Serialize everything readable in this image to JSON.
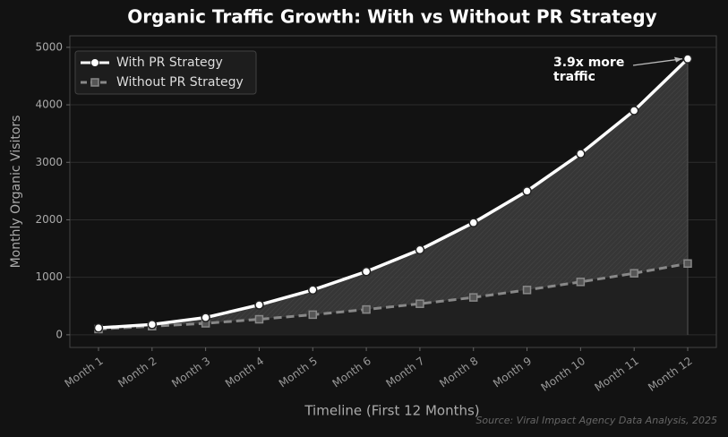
{
  "chart_data": {
    "type": "line",
    "title": "Organic Traffic Growth: With vs Without PR Strategy",
    "x_label": "Timeline (First 12 Months)",
    "y_label": "Monthly Organic Visitors",
    "categories": [
      "Month 1",
      "Month 2",
      "Month 3",
      "Month 4",
      "Month 5",
      "Month 6",
      "Month 7",
      "Month 8",
      "Month 9",
      "Month 10",
      "Month 11",
      "Month 12"
    ],
    "series": [
      {
        "name": "With PR Strategy",
        "color": "#ffffff",
        "marker": "circle",
        "dash": false,
        "values": [
          120,
          180,
          300,
          520,
          780,
          1100,
          1480,
          1950,
          2500,
          3150,
          3900,
          4800
        ]
      },
      {
        "name": "Without PR Strategy",
        "color": "#888888",
        "marker": "square",
        "dash": true,
        "values": [
          100,
          150,
          200,
          270,
          350,
          440,
          540,
          650,
          780,
          920,
          1070,
          1240
        ]
      }
    ],
    "ylim": [
      -220,
      5200
    ],
    "yticks": [
      0,
      1000,
      2000,
      3000,
      4000,
      5000
    ],
    "grid": true,
    "legend": "upper left",
    "annotation": "3.9x more\ntraffic",
    "source": "Source: Viral Impact Agency Data Analysis, 2025"
  }
}
